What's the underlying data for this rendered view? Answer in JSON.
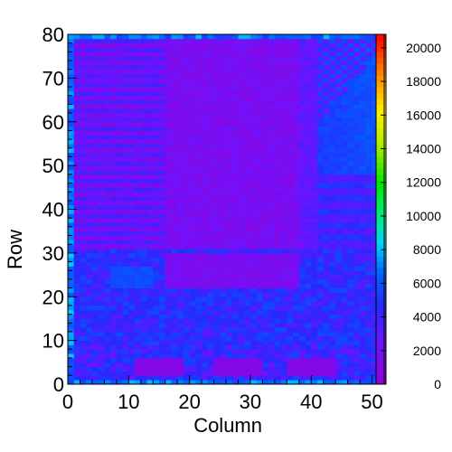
{
  "chart_data": {
    "type": "heatmap",
    "title": "",
    "xlabel": "Column",
    "ylabel": "Row",
    "xlim": [
      0,
      52
    ],
    "ylim": [
      0,
      80
    ],
    "x_ticks": [
      0,
      10,
      20,
      30,
      40,
      50
    ],
    "y_ticks": [
      0,
      10,
      20,
      30,
      40,
      50,
      60,
      70,
      80
    ],
    "colorbar": {
      "min": 0,
      "max": 20800,
      "ticks": [
        0,
        2000,
        4000,
        6000,
        8000,
        10000,
        12000,
        14000,
        16000,
        18000,
        20000
      ],
      "palette": "rainbow (violet-blue-cyan-green-yellow-orange-red)"
    },
    "regions": [
      {
        "name": "upper-left block",
        "columns": [
          0,
          41
        ],
        "rows": [
          31,
          80
        ],
        "value_range": [
          900,
          3500
        ]
      },
      {
        "name": "upper-right block",
        "columns": [
          41,
          52
        ],
        "rows": [
          48,
          80
        ],
        "value_range": [
          3500,
          7000
        ]
      },
      {
        "name": "middle-right block",
        "columns": [
          41,
          52
        ],
        "rows": [
          31,
          48
        ],
        "value_range": [
          2500,
          6500
        ]
      },
      {
        "name": "lower band",
        "columns": [
          0,
          52
        ],
        "rows": [
          5,
          31
        ],
        "value_range": [
          2500,
          6500
        ]
      },
      {
        "name": "bottom patch 1",
        "columns": [
          11,
          19
        ],
        "rows": [
          2,
          6
        ],
        "value": 1000
      },
      {
        "name": "bottom patch 2",
        "columns": [
          24,
          32
        ],
        "rows": [
          2,
          6
        ],
        "value": 1000
      },
      {
        "name": "bottom patch 3",
        "columns": [
          36,
          44
        ],
        "rows": [
          2,
          6
        ],
        "value": 1000
      },
      {
        "name": "border",
        "columns": [
          0,
          52
        ],
        "rows": [
          0,
          80
        ],
        "value_range": [
          5000,
          8500
        ]
      }
    ]
  }
}
